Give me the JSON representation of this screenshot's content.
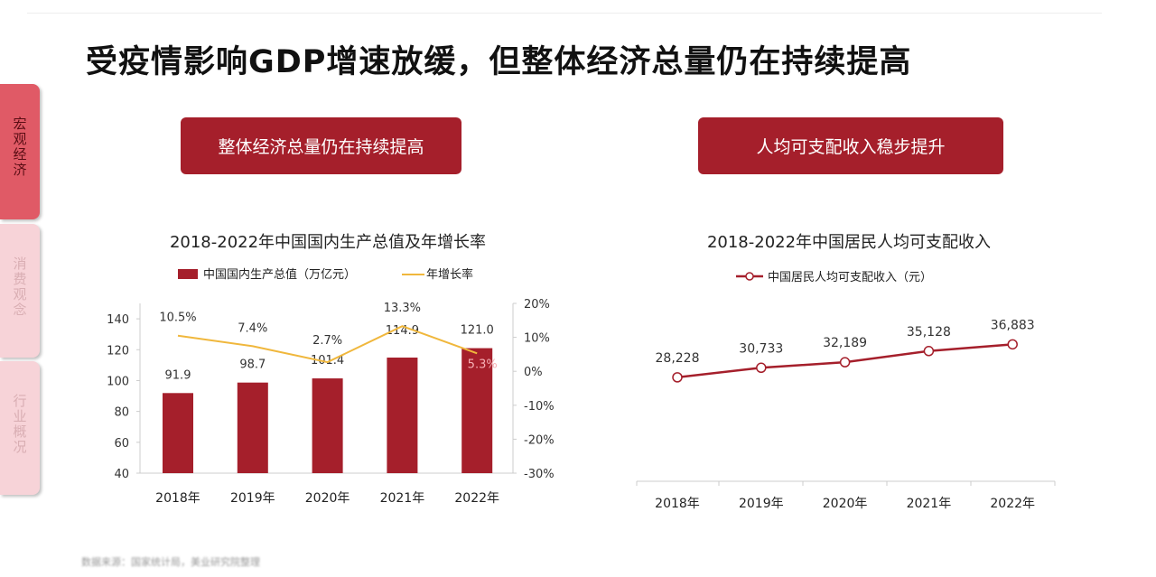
{
  "title": "受疫情影响GDP增速放缓，但整体经济总量仍在持续提高",
  "sidebar": {
    "items": [
      {
        "label": "宏观经济",
        "active": true
      },
      {
        "label": "消费观念",
        "active": false
      },
      {
        "label": "行业概况",
        "active": false
      }
    ]
  },
  "buttons": {
    "left": "整体经济总量仍在持续提高",
    "right": "人均可支配收入稳步提升"
  },
  "footer": "数据来源：国家统计局，美业研究院整理",
  "colors": {
    "bar": "#a51f2b",
    "growth_line": "#f0b73c",
    "income_line": "#a51f2b",
    "accent": "#a51f2b"
  },
  "chart_data": [
    {
      "type": "bar+line",
      "title": "2018-2022年中国国内生产总值及年增长率",
      "categories": [
        "2018年",
        "2019年",
        "2020年",
        "2021年",
        "2022年"
      ],
      "series": [
        {
          "name": "中国国内生产总值（万亿元）",
          "type": "bar",
          "axis": "left",
          "values": [
            91.9,
            98.7,
            101.4,
            114.9,
            121.0
          ],
          "labels": [
            "91.9",
            "98.7",
            "101.4",
            "114.9",
            "121.0"
          ]
        },
        {
          "name": "年增长率",
          "type": "line",
          "axis": "right",
          "values": [
            10.5,
            7.4,
            2.7,
            13.3,
            5.3
          ],
          "labels": [
            "10.5%",
            "7.4%",
            "2.7%",
            "13.3%",
            "5.3%"
          ]
        }
      ],
      "ylim_left": [
        40,
        150
      ],
      "yticks_left": [
        "40",
        "60",
        "80",
        "100",
        "120",
        "140"
      ],
      "ylim_right": [
        -30,
        20
      ],
      "yticks_right": [
        "-30%",
        "-20%",
        "-10%",
        "0%",
        "10%",
        "20%"
      ],
      "grid": false,
      "legend": "top"
    },
    {
      "type": "line",
      "title": "2018-2022年中国居民人均可支配收入",
      "categories": [
        "2018年",
        "2019年",
        "2020年",
        "2021年",
        "2022年"
      ],
      "series": [
        {
          "name": "中国居民人均可支配收入（元）",
          "values": [
            28228,
            30733,
            32189,
            35128,
            36883
          ],
          "labels": [
            "28,228",
            "30,733",
            "32,189",
            "35,128",
            "36,883"
          ]
        }
      ],
      "grid": false,
      "legend": "top"
    }
  ]
}
